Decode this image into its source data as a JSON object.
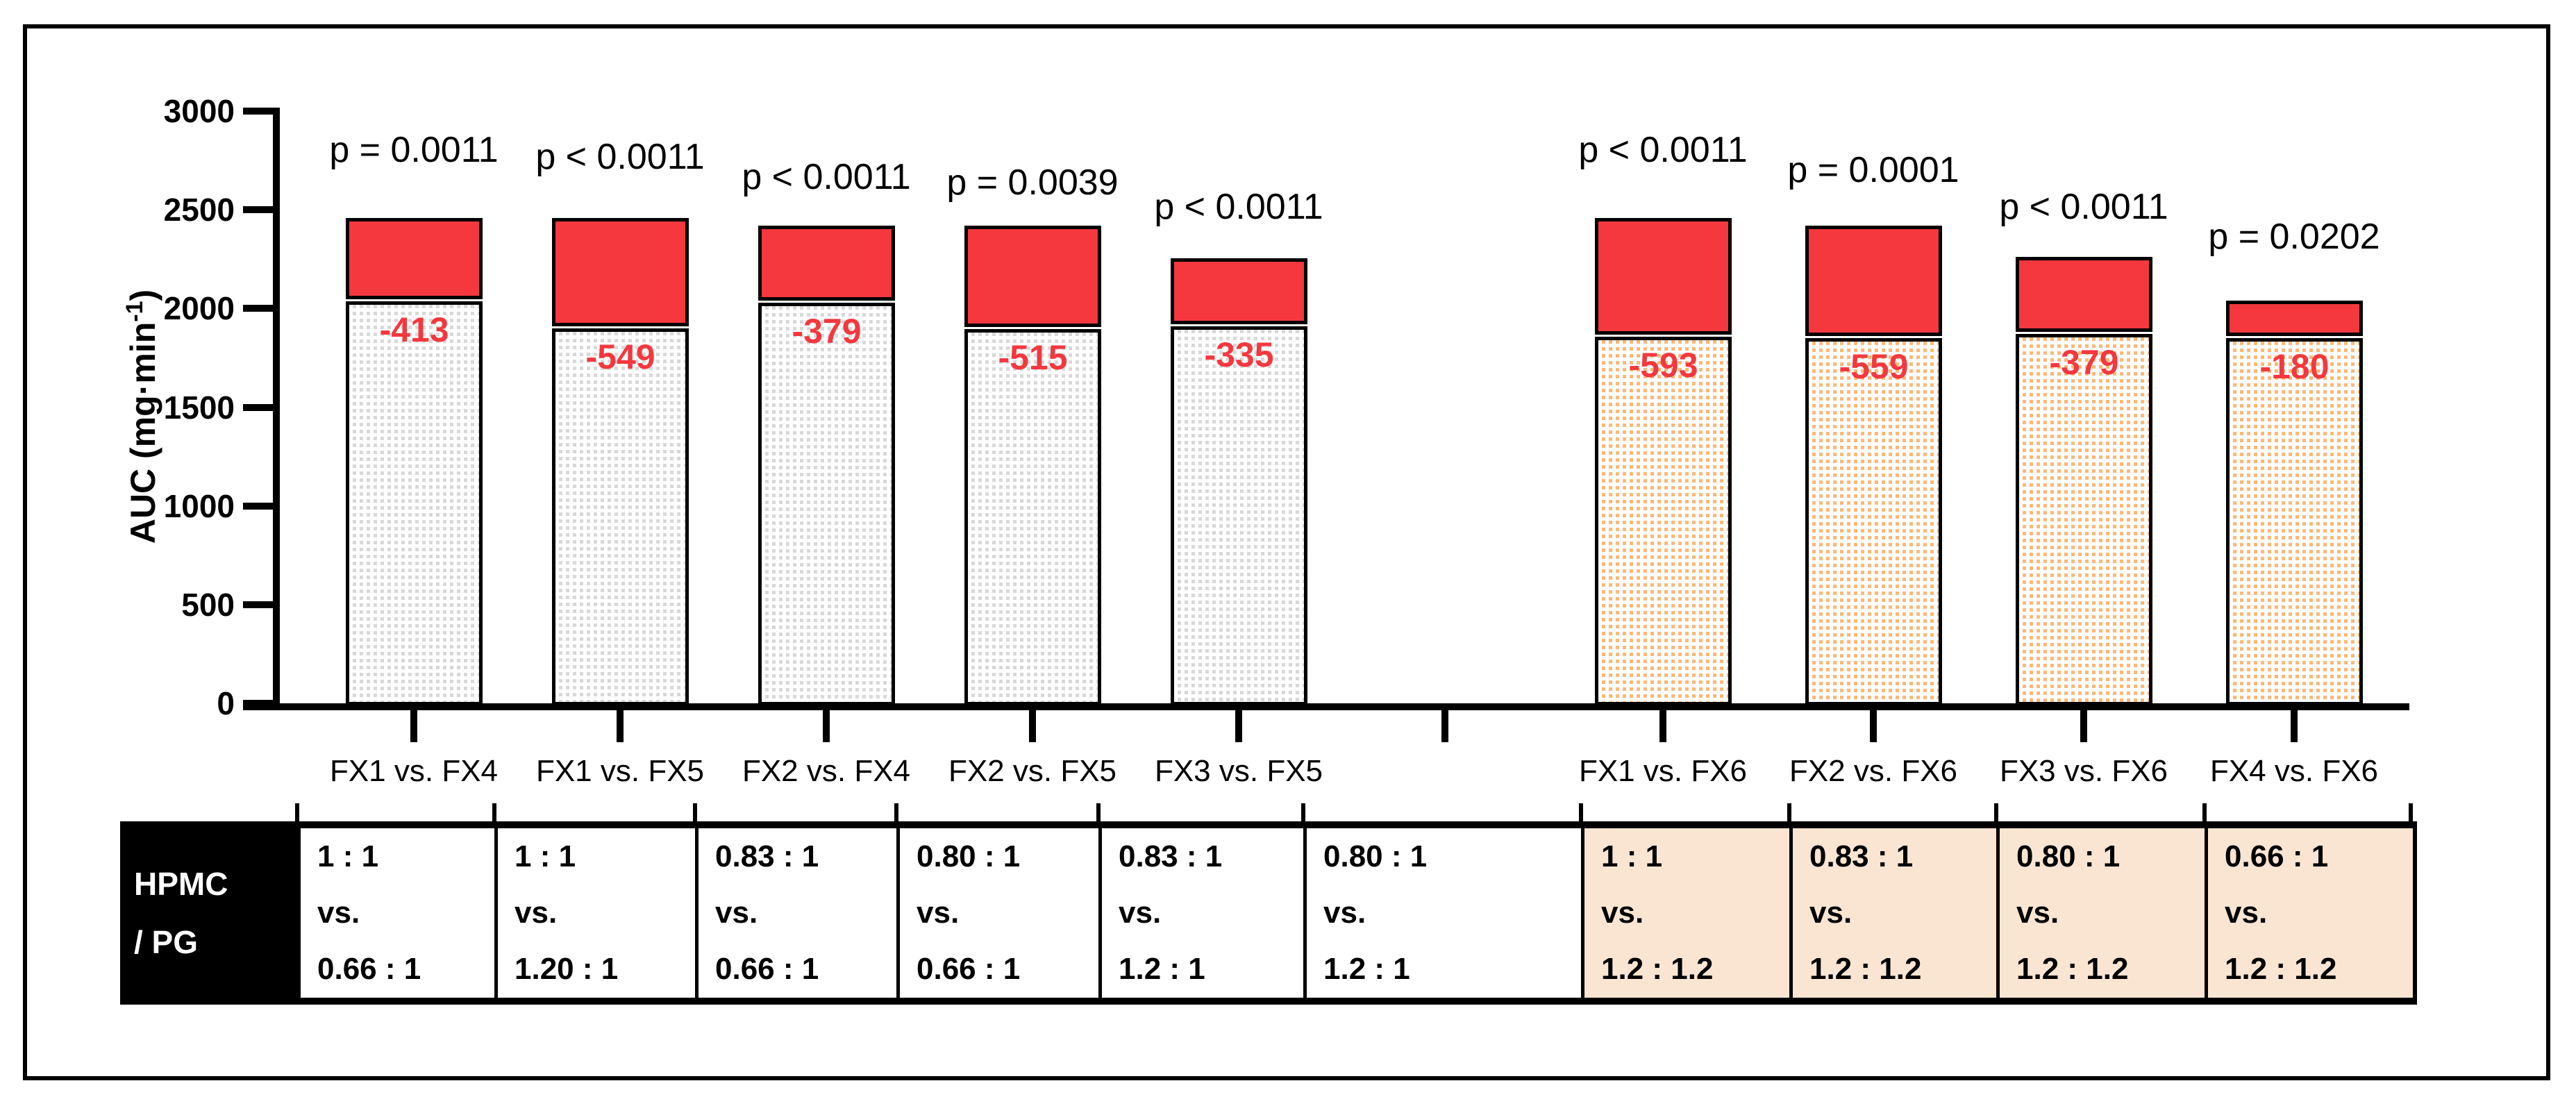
{
  "figure": {
    "background": "#ffffff",
    "frame_color": "#000000"
  },
  "chart_data": {
    "type": "bar",
    "title": "",
    "ylabel_prefix": "AUC (mg·min",
    "ylabel_sup": "-1",
    "ylabel_suffix": ")",
    "ylim": [
      0,
      3000
    ],
    "y_ticks": [
      0,
      500,
      1000,
      1500,
      2000,
      2500,
      3000
    ],
    "grid": false,
    "legend": "none",
    "colors": {
      "upper_segment": "#f4383e",
      "left_group_dot": "#d8d8d8",
      "right_group_dot": "#fbb878",
      "diff_text": "#f4383e",
      "table_highlight": "#fae5d3"
    },
    "description": "Stacked comparison bars: dotted lower segment = smaller AUC of the pair, red upper segment = AUC difference; red number = difference; p-value above each bar.",
    "bars": [
      {
        "slot": 0,
        "category": "FX1 vs. FX4",
        "p_label": "p = 0.0011",
        "total": 2460,
        "lower": 2047,
        "diff": -413,
        "diff_label": "-413",
        "group": "left"
      },
      {
        "slot": 1,
        "category": "FX1 vs. FX5",
        "p_label": "p < 0.0011",
        "total": 2460,
        "lower": 1911,
        "diff": -549,
        "diff_label": "-549",
        "group": "left"
      },
      {
        "slot": 2,
        "category": "FX2 vs. FX4",
        "p_label": "p < 0.0011",
        "total": 2420,
        "lower": 2041,
        "diff": -379,
        "diff_label": "-379",
        "group": "left"
      },
      {
        "slot": 3,
        "category": "FX2 vs. FX5",
        "p_label": "p = 0.0039",
        "total": 2420,
        "lower": 1905,
        "diff": -515,
        "diff_label": "-515",
        "group": "left"
      },
      {
        "slot": 4,
        "category": "FX3 vs. FX5",
        "p_label": "p < 0.0011",
        "total": 2255,
        "lower": 1920,
        "diff": -335,
        "diff_label": "-335",
        "group": "left"
      },
      {
        "slot": 6,
        "category": "FX1 vs. FX6",
        "p_label": "p < 0.0011",
        "total": 2460,
        "lower": 1867,
        "diff": -593,
        "diff_label": "-593",
        "group": "right"
      },
      {
        "slot": 7,
        "category": "FX2 vs. FX6",
        "p_label": "p = 0.0001",
        "total": 2420,
        "lower": 1861,
        "diff": -559,
        "diff_label": "-559",
        "group": "right"
      },
      {
        "slot": 8,
        "category": "FX3 vs. FX6",
        "p_label": "p < 0.0011",
        "total": 2260,
        "lower": 1881,
        "diff": -379,
        "diff_label": "-379",
        "group": "right"
      },
      {
        "slot": 9,
        "category": "FX4 vs. FX6",
        "p_label": "p = 0.0202",
        "total": 2040,
        "lower": 1860,
        "diff": -180,
        "diff_label": "-180",
        "group": "right"
      }
    ],
    "empty_slot": 5
  },
  "table": {
    "header_line1": "HPMC",
    "header_line2": "/ PG",
    "columns": [
      {
        "top": "1 : 1",
        "mid": "vs.",
        "bottom": "0.66 : 1",
        "highlight": false
      },
      {
        "top": "1 : 1",
        "mid": "vs.",
        "bottom": "1.20 : 1",
        "highlight": false
      },
      {
        "top": "0.83 : 1",
        "mid": "vs.",
        "bottom": "0.66 : 1",
        "highlight": false
      },
      {
        "top": "0.80 : 1",
        "mid": "vs.",
        "bottom": "0.66 : 1",
        "highlight": false
      },
      {
        "top": "0.83 : 1",
        "mid": "vs.",
        "bottom": "1.2 : 1",
        "highlight": false
      },
      {
        "top": "0.80 : 1",
        "mid": "vs.",
        "bottom": "1.2 : 1",
        "highlight": false
      },
      {
        "top": "1 : 1",
        "mid": "vs.",
        "bottom": "1.2 : 1.2",
        "highlight": true
      },
      {
        "top": "0.83 : 1",
        "mid": "vs.",
        "bottom": "1.2 : 1.2",
        "highlight": true
      },
      {
        "top": "0.80 : 1",
        "mid": "vs.",
        "bottom": "1.2 : 1.2",
        "highlight": true
      },
      {
        "top": "0.66 : 1",
        "mid": "vs.",
        "bottom": "1.2 : 1.2",
        "highlight": true
      }
    ]
  }
}
